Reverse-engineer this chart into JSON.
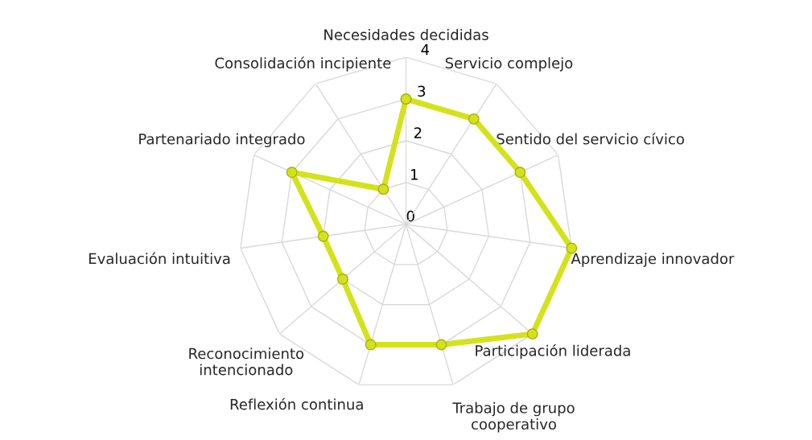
{
  "chart_data": {
    "type": "radar",
    "categories": [
      "Necesidades decididas",
      "Servicio complejo",
      "Sentido del servicio cívico",
      "Aprendizaje innovador",
      "Participación liderada",
      "Trabajo de grupo\ncooperativo",
      "Reflexión continua",
      "Reconocimiento\nintencionado",
      "Evaluación intuitiva",
      "Partenariado integrado",
      "Consolidación incipiente"
    ],
    "series": [
      {
        "color": "#d4e21c",
        "values": [
          3,
          3,
          3,
          4,
          4,
          3,
          3,
          2,
          2,
          3,
          1
        ]
      }
    ],
    "ylim": [
      0,
      4
    ],
    "yticks": [
      0,
      1,
      2,
      3,
      4
    ],
    "grid": true,
    "marker": "circle",
    "line_style": "solid"
  }
}
